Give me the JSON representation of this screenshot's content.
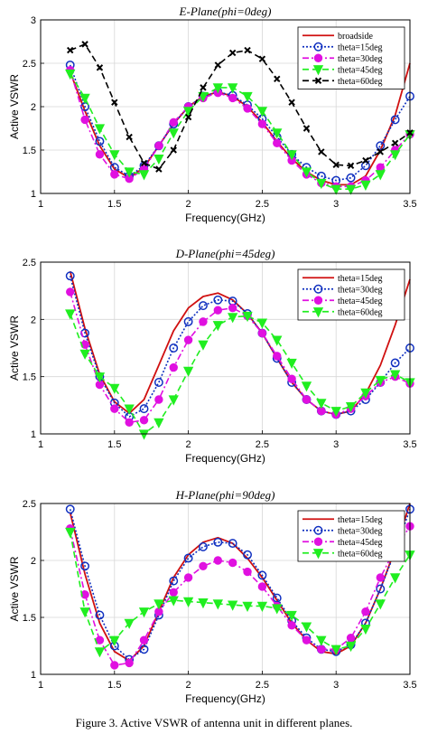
{
  "caption": "Figure 3. Active VSWR of antenna unit in different planes.",
  "colors": {
    "red": "#d01010",
    "blue": "#1030c0",
    "magenta": "#e010e0",
    "green": "#20ee20",
    "black": "#000000"
  },
  "chart_data": [
    {
      "type": "line",
      "title": "E-Plane(phi=0deg)",
      "xlabel": "Frequency(GHz)",
      "ylabel": "Active VSWR",
      "xlim": [
        1,
        3.5
      ],
      "ylim": [
        1,
        3
      ],
      "xticks": [
        "1",
        "1.5",
        "2",
        "2.5",
        "3",
        "3.5"
      ],
      "yticks": [
        "1",
        "1.5",
        "2",
        "2.5",
        "3"
      ],
      "grid": true,
      "legend_position": "top-right",
      "series": [
        {
          "name": "broadside",
          "color": "#d01010",
          "dash": "solid",
          "marker": "none",
          "x": [
            1.2,
            1.3,
            1.4,
            1.5,
            1.6,
            1.7,
            1.8,
            1.9,
            2.0,
            2.1,
            2.2,
            2.3,
            2.4,
            2.5,
            2.6,
            2.7,
            2.8,
            2.9,
            3.0,
            3.1,
            3.2,
            3.3,
            3.4,
            3.5
          ],
          "y": [
            2.4,
            1.95,
            1.55,
            1.28,
            1.18,
            1.3,
            1.55,
            1.8,
            2.0,
            2.12,
            2.17,
            2.12,
            2.0,
            1.82,
            1.6,
            1.4,
            1.25,
            1.15,
            1.1,
            1.1,
            1.2,
            1.5,
            1.9,
            2.5
          ]
        },
        {
          "name": "theta=15deg",
          "color": "#1030c0",
          "dash": "dot",
          "marker": "circle",
          "x": [
            1.2,
            1.3,
            1.4,
            1.5,
            1.6,
            1.7,
            1.8,
            1.9,
            2.0,
            2.1,
            2.2,
            2.3,
            2.4,
            2.5,
            2.6,
            2.7,
            2.8,
            2.9,
            3.0,
            3.1,
            3.2,
            3.3,
            3.4,
            3.5
          ],
          "y": [
            2.48,
            2.0,
            1.6,
            1.3,
            1.2,
            1.32,
            1.55,
            1.8,
            2.0,
            2.12,
            2.17,
            2.13,
            2.02,
            1.86,
            1.65,
            1.45,
            1.3,
            1.2,
            1.15,
            1.18,
            1.32,
            1.55,
            1.85,
            2.12
          ]
        },
        {
          "name": "theta=30deg",
          "color": "#e010e0",
          "dash": "dashdot",
          "marker": "circle-filled",
          "x": [
            1.2,
            1.3,
            1.4,
            1.5,
            1.6,
            1.7,
            1.8,
            1.9,
            2.0,
            2.1,
            2.2,
            2.3,
            2.4,
            2.5,
            2.6,
            2.7,
            2.8,
            2.9,
            3.0,
            3.1,
            3.2,
            3.3,
            3.4,
            3.5
          ],
          "y": [
            2.42,
            1.85,
            1.45,
            1.22,
            1.17,
            1.28,
            1.55,
            1.82,
            2.0,
            2.1,
            2.16,
            2.1,
            1.98,
            1.8,
            1.58,
            1.38,
            1.22,
            1.12,
            1.08,
            1.08,
            1.15,
            1.3,
            1.5,
            1.68
          ]
        },
        {
          "name": "theta=45deg",
          "color": "#20ee20",
          "dash": "dashed",
          "marker": "triangle-down",
          "x": [
            1.2,
            1.3,
            1.4,
            1.5,
            1.6,
            1.7,
            1.8,
            1.9,
            2.0,
            2.1,
            2.2,
            2.3,
            2.4,
            2.5,
            2.6,
            2.7,
            2.8,
            2.9,
            3.0,
            3.1,
            3.2,
            3.3,
            3.4,
            3.5
          ],
          "y": [
            2.38,
            2.1,
            1.75,
            1.45,
            1.25,
            1.22,
            1.4,
            1.7,
            1.95,
            2.12,
            2.22,
            2.22,
            2.12,
            1.95,
            1.7,
            1.45,
            1.25,
            1.12,
            1.05,
            1.05,
            1.1,
            1.22,
            1.45,
            1.68
          ]
        },
        {
          "name": "theta=60deg",
          "color": "#000000",
          "dash": "dashed",
          "marker": "x",
          "x": [
            1.2,
            1.3,
            1.4,
            1.5,
            1.6,
            1.7,
            1.8,
            1.9,
            2.0,
            2.1,
            2.2,
            2.3,
            2.4,
            2.5,
            2.6,
            2.7,
            2.8,
            2.9,
            3.0,
            3.1,
            3.2,
            3.3,
            3.4,
            3.5
          ],
          "y": [
            2.65,
            2.72,
            2.45,
            2.05,
            1.65,
            1.35,
            1.28,
            1.5,
            1.88,
            2.22,
            2.48,
            2.62,
            2.65,
            2.55,
            2.32,
            2.05,
            1.75,
            1.48,
            1.33,
            1.32,
            1.38,
            1.48,
            1.58,
            1.7
          ]
        }
      ]
    },
    {
      "type": "line",
      "title": "D-Plane(phi=45deg)",
      "xlabel": "Frequency(GHz)",
      "ylabel": "Active VSWR",
      "xlim": [
        1,
        3.5
      ],
      "ylim": [
        1,
        2.5
      ],
      "xticks": [
        "1",
        "1.5",
        "2",
        "2.5",
        "3",
        "3.5"
      ],
      "yticks": [
        "1",
        "1.5",
        "2",
        "2.5"
      ],
      "grid": true,
      "legend_position": "top-right",
      "series": [
        {
          "name": "theta=15deg",
          "color": "#d01010",
          "dash": "solid",
          "marker": "none",
          "x": [
            1.2,
            1.3,
            1.4,
            1.5,
            1.6,
            1.7,
            1.8,
            1.9,
            2.0,
            2.1,
            2.2,
            2.3,
            2.4,
            2.5,
            2.6,
            2.7,
            2.8,
            2.9,
            3.0,
            3.1,
            3.2,
            3.3,
            3.4,
            3.5
          ],
          "y": [
            2.42,
            1.92,
            1.52,
            1.28,
            1.18,
            1.3,
            1.6,
            1.9,
            2.1,
            2.2,
            2.23,
            2.17,
            2.05,
            1.88,
            1.66,
            1.45,
            1.3,
            1.2,
            1.17,
            1.2,
            1.35,
            1.6,
            1.95,
            2.35
          ]
        },
        {
          "name": "theta=30deg",
          "color": "#1030c0",
          "dash": "dot",
          "marker": "circle",
          "x": [
            1.2,
            1.3,
            1.4,
            1.5,
            1.6,
            1.7,
            1.8,
            1.9,
            2.0,
            2.1,
            2.2,
            2.3,
            2.4,
            2.5,
            2.6,
            2.7,
            2.8,
            2.9,
            3.0,
            3.1,
            3.2,
            3.3,
            3.4,
            3.5
          ],
          "y": [
            2.38,
            1.88,
            1.5,
            1.27,
            1.15,
            1.22,
            1.45,
            1.75,
            1.98,
            2.12,
            2.17,
            2.16,
            2.05,
            1.88,
            1.66,
            1.45,
            1.3,
            1.2,
            1.17,
            1.2,
            1.3,
            1.45,
            1.62,
            1.75
          ]
        },
        {
          "name": "theta=45deg",
          "color": "#e010e0",
          "dash": "dashdot",
          "marker": "circle-filled",
          "x": [
            1.2,
            1.3,
            1.4,
            1.5,
            1.6,
            1.7,
            1.8,
            1.9,
            2.0,
            2.1,
            2.2,
            2.3,
            2.4,
            2.5,
            2.6,
            2.7,
            2.8,
            2.9,
            3.0,
            3.1,
            3.2,
            3.3,
            3.4,
            3.5
          ],
          "y": [
            2.24,
            1.78,
            1.43,
            1.22,
            1.1,
            1.12,
            1.3,
            1.58,
            1.82,
            1.98,
            2.08,
            2.1,
            2.03,
            1.88,
            1.68,
            1.48,
            1.3,
            1.2,
            1.17,
            1.22,
            1.33,
            1.45,
            1.5,
            1.44
          ]
        },
        {
          "name": "theta=60deg",
          "color": "#20ee20",
          "dash": "dashed",
          "marker": "triangle-down",
          "x": [
            1.2,
            1.3,
            1.4,
            1.5,
            1.6,
            1.7,
            1.8,
            1.9,
            2.0,
            2.1,
            2.2,
            2.3,
            2.4,
            2.5,
            2.6,
            2.7,
            2.8,
            2.9,
            3.0,
            3.1,
            3.2,
            3.3,
            3.4,
            3.5
          ],
          "y": [
            2.05,
            1.7,
            1.5,
            1.4,
            1.22,
            1.0,
            1.1,
            1.3,
            1.55,
            1.78,
            1.95,
            2.02,
            2.03,
            1.97,
            1.82,
            1.62,
            1.42,
            1.27,
            1.2,
            1.24,
            1.36,
            1.47,
            1.52,
            1.45
          ]
        }
      ]
    },
    {
      "type": "line",
      "title": "H-Plane(phi=90deg)",
      "xlabel": "Frequency(GHz)",
      "ylabel": "Active VSWR",
      "xlim": [
        1,
        3.5
      ],
      "ylim": [
        1,
        2.5
      ],
      "xticks": [
        "1",
        "1.5",
        "2",
        "2.5",
        "3",
        "3.5"
      ],
      "yticks": [
        "1",
        "1.5",
        "2",
        "2.5"
      ],
      "grid": true,
      "legend_position": "top-right",
      "series": [
        {
          "name": "theta=15deg",
          "color": "#d01010",
          "dash": "solid",
          "marker": "none",
          "x": [
            1.2,
            1.3,
            1.4,
            1.5,
            1.6,
            1.7,
            1.8,
            1.9,
            2.0,
            2.1,
            2.2,
            2.3,
            2.4,
            2.5,
            2.6,
            2.7,
            2.8,
            2.9,
            3.0,
            3.1,
            3.2,
            3.3,
            3.4,
            3.5
          ],
          "y": [
            2.42,
            1.88,
            1.45,
            1.2,
            1.12,
            1.25,
            1.55,
            1.85,
            2.05,
            2.16,
            2.2,
            2.15,
            2.02,
            1.85,
            1.65,
            1.45,
            1.3,
            1.2,
            1.18,
            1.25,
            1.45,
            1.75,
            2.1,
            2.5
          ]
        },
        {
          "name": "theta=30deg",
          "color": "#1030c0",
          "dash": "dot",
          "marker": "circle",
          "x": [
            1.2,
            1.3,
            1.4,
            1.5,
            1.6,
            1.7,
            1.8,
            1.9,
            2.0,
            2.1,
            2.2,
            2.3,
            2.4,
            2.5,
            2.6,
            2.7,
            2.8,
            2.9,
            3.0,
            3.1,
            3.2,
            3.3,
            3.4,
            3.5
          ],
          "y": [
            2.45,
            1.95,
            1.52,
            1.25,
            1.13,
            1.22,
            1.52,
            1.82,
            2.02,
            2.12,
            2.16,
            2.15,
            2.05,
            1.87,
            1.67,
            1.47,
            1.32,
            1.22,
            1.2,
            1.26,
            1.45,
            1.75,
            2.08,
            2.45
          ]
        },
        {
          "name": "theta=45deg",
          "color": "#e010e0",
          "dash": "dashdot",
          "marker": "circle-filled",
          "x": [
            1.2,
            1.3,
            1.4,
            1.5,
            1.6,
            1.7,
            1.8,
            1.9,
            2.0,
            2.1,
            2.2,
            2.3,
            2.4,
            2.5,
            2.6,
            2.7,
            2.8,
            2.9,
            3.0,
            3.1,
            3.2,
            3.3,
            3.4,
            3.5
          ],
          "y": [
            2.28,
            1.7,
            1.3,
            1.08,
            1.1,
            1.3,
            1.55,
            1.72,
            1.85,
            1.95,
            2.0,
            1.98,
            1.9,
            1.77,
            1.6,
            1.43,
            1.3,
            1.22,
            1.22,
            1.32,
            1.55,
            1.85,
            2.1,
            2.3
          ]
        },
        {
          "name": "theta=60deg",
          "color": "#20ee20",
          "dash": "dashed",
          "marker": "triangle-down",
          "x": [
            1.2,
            1.3,
            1.4,
            1.5,
            1.6,
            1.7,
            1.8,
            1.9,
            2.0,
            2.1,
            2.2,
            2.3,
            2.4,
            2.5,
            2.6,
            2.7,
            2.8,
            2.9,
            3.0,
            3.1,
            3.2,
            3.3,
            3.4,
            3.5
          ],
          "y": [
            2.25,
            1.55,
            1.2,
            1.3,
            1.45,
            1.55,
            1.62,
            1.65,
            1.64,
            1.63,
            1.62,
            1.61,
            1.6,
            1.6,
            1.58,
            1.52,
            1.42,
            1.3,
            1.22,
            1.25,
            1.4,
            1.62,
            1.85,
            2.05
          ]
        }
      ]
    }
  ]
}
